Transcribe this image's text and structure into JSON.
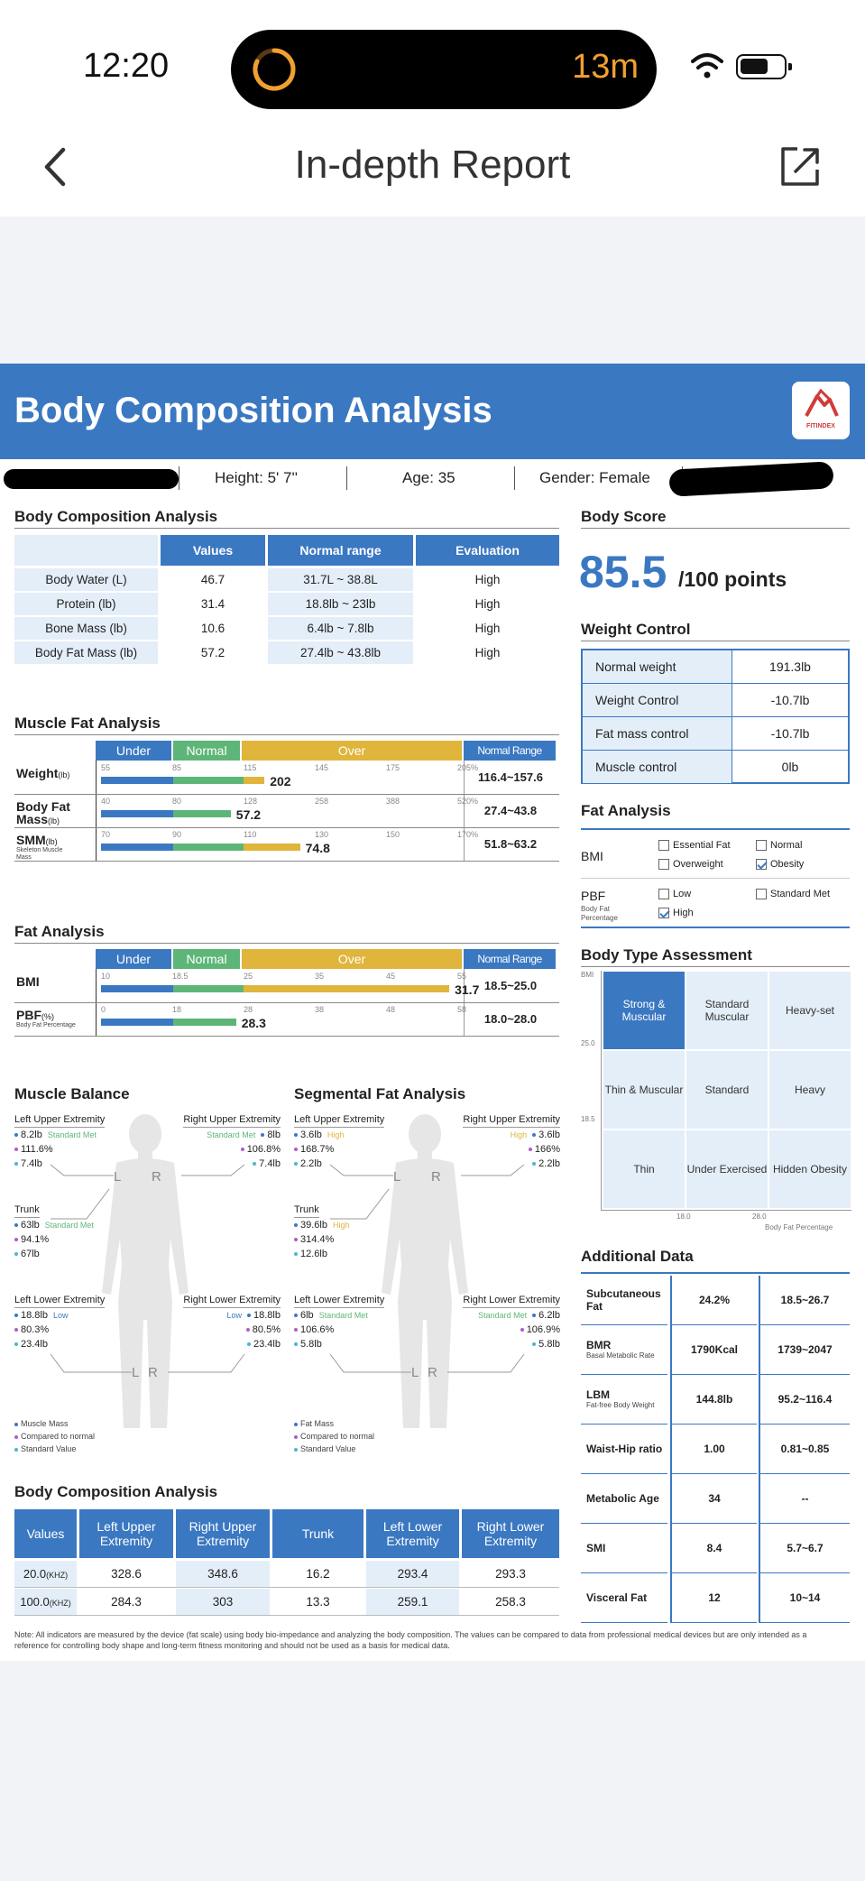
{
  "status": {
    "time": "12:20",
    "timer": "13m"
  },
  "nav": {
    "title": "In-depth Report"
  },
  "header": {
    "title": "Body Composition Analysis",
    "logo_text": "FITINDEX"
  },
  "info": {
    "height": "Height: 5' 7''",
    "age": "Age: 35",
    "gender": "Gender: Female"
  },
  "bca": {
    "title": "Body Composition Analysis",
    "headers": [
      "Values",
      "Normal range",
      "Evaluation"
    ],
    "rows": [
      [
        "Body Water (L)",
        "46.7",
        "31.7L ~ 38.8L",
        "High"
      ],
      [
        "Protein (lb)",
        "31.4",
        "18.8lb ~ 23lb",
        "High"
      ],
      [
        "Bone Mass (lb)",
        "10.6",
        "6.4lb ~ 7.8lb",
        "High"
      ],
      [
        "Body Fat Mass (lb)",
        "57.2",
        "27.4lb ~ 43.8lb",
        "High"
      ]
    ]
  },
  "mfa": {
    "title": "Muscle Fat Analysis",
    "under": "Under",
    "normal": "Normal",
    "over": "Over",
    "range_h": "Normal Range",
    "rows": [
      {
        "label": "Weight",
        "unit": "(lb)",
        "sub": "",
        "ticks": [
          "55",
          "85",
          "115",
          "145",
          "175",
          "205%"
        ],
        "value": "202",
        "range": "116.4~157.6",
        "fill": 0.46
      },
      {
        "label": "Body Fat Mass",
        "unit": "(lb)",
        "sub": "",
        "ticks": [
          "40",
          "80",
          "128",
          "258",
          "388",
          "520%"
        ],
        "value": "57.2",
        "range": "27.4~43.8",
        "fill": 0.365
      },
      {
        "label": "SMM",
        "unit": "(lb)",
        "sub": "Skeleton Muscle Mass",
        "ticks": [
          "70",
          "90",
          "110",
          "130",
          "150",
          "170%"
        ],
        "value": "74.8",
        "range": "51.8~63.2",
        "fill": 0.56
      }
    ]
  },
  "fa": {
    "title": "Fat Analysis",
    "under": "Under",
    "normal": "Normal",
    "over": "Over",
    "range_h": "Normal Range",
    "rows": [
      {
        "label": "BMI",
        "unit": "",
        "sub": "",
        "ticks": [
          "10",
          "18.5",
          "25",
          "35",
          "45",
          "55"
        ],
        "value": "31.7",
        "range": "18.5~25.0",
        "fill": 0.98
      },
      {
        "label": "PBF",
        "unit": "(%)",
        "sub": "Body Fat Percentage",
        "ticks": [
          "0",
          "18",
          "28",
          "38",
          "48",
          "58"
        ],
        "value": "28.3",
        "range": "18.0~28.0",
        "fill": 0.38
      }
    ]
  },
  "muscle_balance": {
    "title": "Muscle Balance",
    "lue": {
      "t": "Left Upper Extremity",
      "a": "8.2lb",
      "tag": "Standard Met",
      "b": "111.6%",
      "c": "7.4lb"
    },
    "rue": {
      "t": "Right Upper Extremity",
      "a": "8lb",
      "tag": "Standard Met",
      "b": "106.8%",
      "c": "7.4lb"
    },
    "trunk": {
      "t": "Trunk",
      "a": "63lb",
      "tag": "Standard Met",
      "b": "94.1%",
      "c": "67lb"
    },
    "lle": {
      "t": "Left Lower Extremity",
      "a": "18.8lb",
      "tag": "Low",
      "b": "80.3%",
      "c": "23.4lb"
    },
    "rle": {
      "t": "Right Lower Extremity",
      "a": "18.8lb",
      "tag": "Low",
      "b": "80.5%",
      "c": "23.4lb"
    },
    "legend": [
      "Muscle Mass",
      "Compared to normal",
      "Standard Value"
    ]
  },
  "seg_fat": {
    "title": "Segmental Fat Analysis",
    "lue": {
      "t": "Left Upper Extremity",
      "a": "3.6lb",
      "tag": "High",
      "b": "168.7%",
      "c": "2.2lb"
    },
    "rue": {
      "t": "Right Upper Extremity",
      "a": "3.6lb",
      "tag": "High",
      "b": "166%",
      "c": "2.2lb"
    },
    "trunk": {
      "t": "Trunk",
      "a": "39.6lb",
      "tag": "High",
      "b": "314.4%",
      "c": "12.6lb"
    },
    "lle": {
      "t": "Left Lower Extremity",
      "a": "6lb",
      "tag": "Standard Met",
      "b": "106.6%",
      "c": "5.8lb"
    },
    "rle": {
      "t": "Right Lower Extremity",
      "a": "6.2lb",
      "tag": "Standard Met",
      "b": "106.9%",
      "c": "5.8lb"
    },
    "legend": [
      "Fat Mass",
      "Compared to normal",
      "Standard Value"
    ]
  },
  "seg_table": {
    "title": "Body Composition Analysis",
    "headers": [
      "Values",
      "Left Upper Extremity",
      "Right Upper Extremity",
      "Trunk",
      "Left Lower Extremity",
      "Right Lower Extremity"
    ],
    "rows": [
      [
        "20.0",
        "(KHZ)",
        "328.6",
        "348.6",
        "16.2",
        "293.4",
        "293.3"
      ],
      [
        "100.0",
        "(KHZ)",
        "284.3",
        "303",
        "13.3",
        "259.1",
        "258.3"
      ]
    ]
  },
  "note": "Note: All indicators are measured by the device (fat scale) using body bio-impedance and analyzing the body composition. The values can be compared to data from professional medical devices but are only intended as a reference for controlling body shape and long-term fitness monitoring and should not be used as a basis for medical data.",
  "body_score": {
    "title": "Body Score",
    "score": "85.5",
    "suffix": "/100 points"
  },
  "weight_control": {
    "title": "Weight Control",
    "rows": [
      [
        "Normal weight",
        "191.3lb"
      ],
      [
        "Weight Control",
        "-10.7lb"
      ],
      [
        "Fat mass control",
        "-10.7lb"
      ],
      [
        "Muscle control",
        "0lb"
      ]
    ]
  },
  "fat_analysis_r": {
    "title": "Fat Analysis",
    "bmi": "BMI",
    "pbf": "PBF",
    "pbf_sub": "Body Fat Percentage",
    "opts": {
      "essential": "Essential Fat",
      "normal": "Normal",
      "overweight": "Overweight",
      "obesity": "Obesity",
      "low": "Low",
      "standard": "Standard Met",
      "high": "High"
    }
  },
  "body_type": {
    "title": "Body Type Assessment",
    "bmi_label": "BMI",
    "y1": "25.0",
    "y2": "18.5",
    "x1": "18.0",
    "x2": "28.0",
    "xlabel": "Body Fat Percentage",
    "cells": [
      "Strong & Muscular",
      "Standard Muscular",
      "Heavy-set",
      "Thin & Muscular",
      "Standard",
      "Heavy",
      "Thin",
      "Under Exercised",
      "Hidden Obesity"
    ]
  },
  "additional": {
    "title": "Additional Data",
    "rows": [
      {
        "name": "Subcutaneous Fat",
        "sub": "",
        "value": "24.2%",
        "range": "18.5~26.7"
      },
      {
        "name": "BMR",
        "sub": "Basal Metabolic Rate",
        "value": "1790Kcal",
        "range": "1739~2047"
      },
      {
        "name": "LBM",
        "sub": "Fat-free Body Weight",
        "value": "144.8lb",
        "range": "95.2~116.4"
      },
      {
        "name": "Waist-Hip ratio",
        "sub": "",
        "value": "1.00",
        "range": "0.81~0.85"
      },
      {
        "name": "Metabolic Age",
        "sub": "",
        "value": "34",
        "range": "--"
      },
      {
        "name": "SMI",
        "sub": "",
        "value": "8.4",
        "range": "5.7~6.7"
      },
      {
        "name": "Visceral Fat",
        "sub": "",
        "value": "12",
        "range": "10~14"
      }
    ]
  },
  "colors": {
    "blue": "#3b78c2",
    "green": "#5db678",
    "gold": "#e0b53c",
    "light": "#e4eef8"
  }
}
